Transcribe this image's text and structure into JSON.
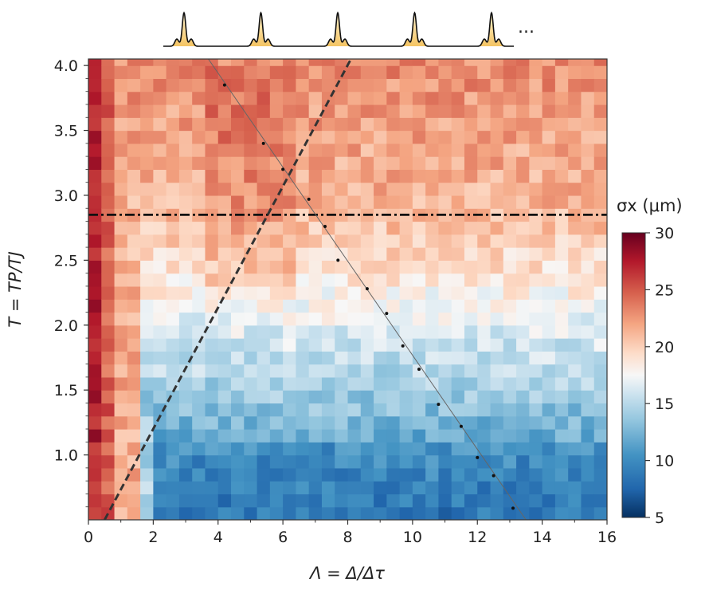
{
  "chart_data": {
    "type": "heatmap",
    "title": "",
    "xlabel": "Λ = Δ/Δτ",
    "ylabel": "T = TP/TJ",
    "xlim": [
      0,
      16
    ],
    "ylim": [
      0.5,
      4.05
    ],
    "x_ticks": [
      "0",
      "2",
      "4",
      "6",
      "8",
      "10",
      "12",
      "14",
      "16"
    ],
    "y_ticks": [
      "1.0",
      "1.5",
      "2.0",
      "2.5",
      "3.0",
      "3.5",
      "4.0"
    ],
    "colorbar": {
      "label": "σx (μm)",
      "min": 5,
      "max": 30,
      "ticks": [
        "5",
        "10",
        "15",
        "20",
        "25",
        "30"
      ],
      "colormap": "RdBu_r"
    },
    "grid": {
      "x_start": 0,
      "x_step": 0.4,
      "nx": 40,
      "y_start": 0.5,
      "y_step": 0.1,
      "ny": 36
    },
    "z_summary": "sigma_x values (μm) per cell; ~28 at Λ<0.5, ~24 at Λ≈1, high 20-24 for T>2.8, ~17 at T≈2, ~14 at T≈1.5, ~8-11 at T<1.2 for Λ>2",
    "annotations": {
      "dash_dot_line_T": 2.85,
      "dashed_line": {
        "from": [
          0.5,
          0.5
        ],
        "to": [
          8.1,
          4.05
        ]
      },
      "fit_line": {
        "from": [
          3.7,
          4.05
        ],
        "to": [
          13.5,
          0.5
        ]
      },
      "fit_points": [
        {
          "x": 4.2,
          "y": 3.85
        },
        {
          "x": 5.4,
          "y": 3.4
        },
        {
          "x": 6.0,
          "y": 3.2
        },
        {
          "x": 6.8,
          "y": 2.97
        },
        {
          "x": 7.3,
          "y": 2.76
        },
        {
          "x": 7.7,
          "y": 2.5
        },
        {
          "x": 8.6,
          "y": 2.28
        },
        {
          "x": 9.2,
          "y": 2.09
        },
        {
          "x": 9.7,
          "y": 1.84
        },
        {
          "x": 10.2,
          "y": 1.66
        },
        {
          "x": 10.8,
          "y": 1.39
        },
        {
          "x": 11.5,
          "y": 1.22
        },
        {
          "x": 12.0,
          "y": 0.98
        },
        {
          "x": 12.5,
          "y": 0.84
        },
        {
          "x": 13.1,
          "y": 0.59
        }
      ]
    },
    "inset": {
      "peaks": 5,
      "ellipsis": "..."
    }
  }
}
